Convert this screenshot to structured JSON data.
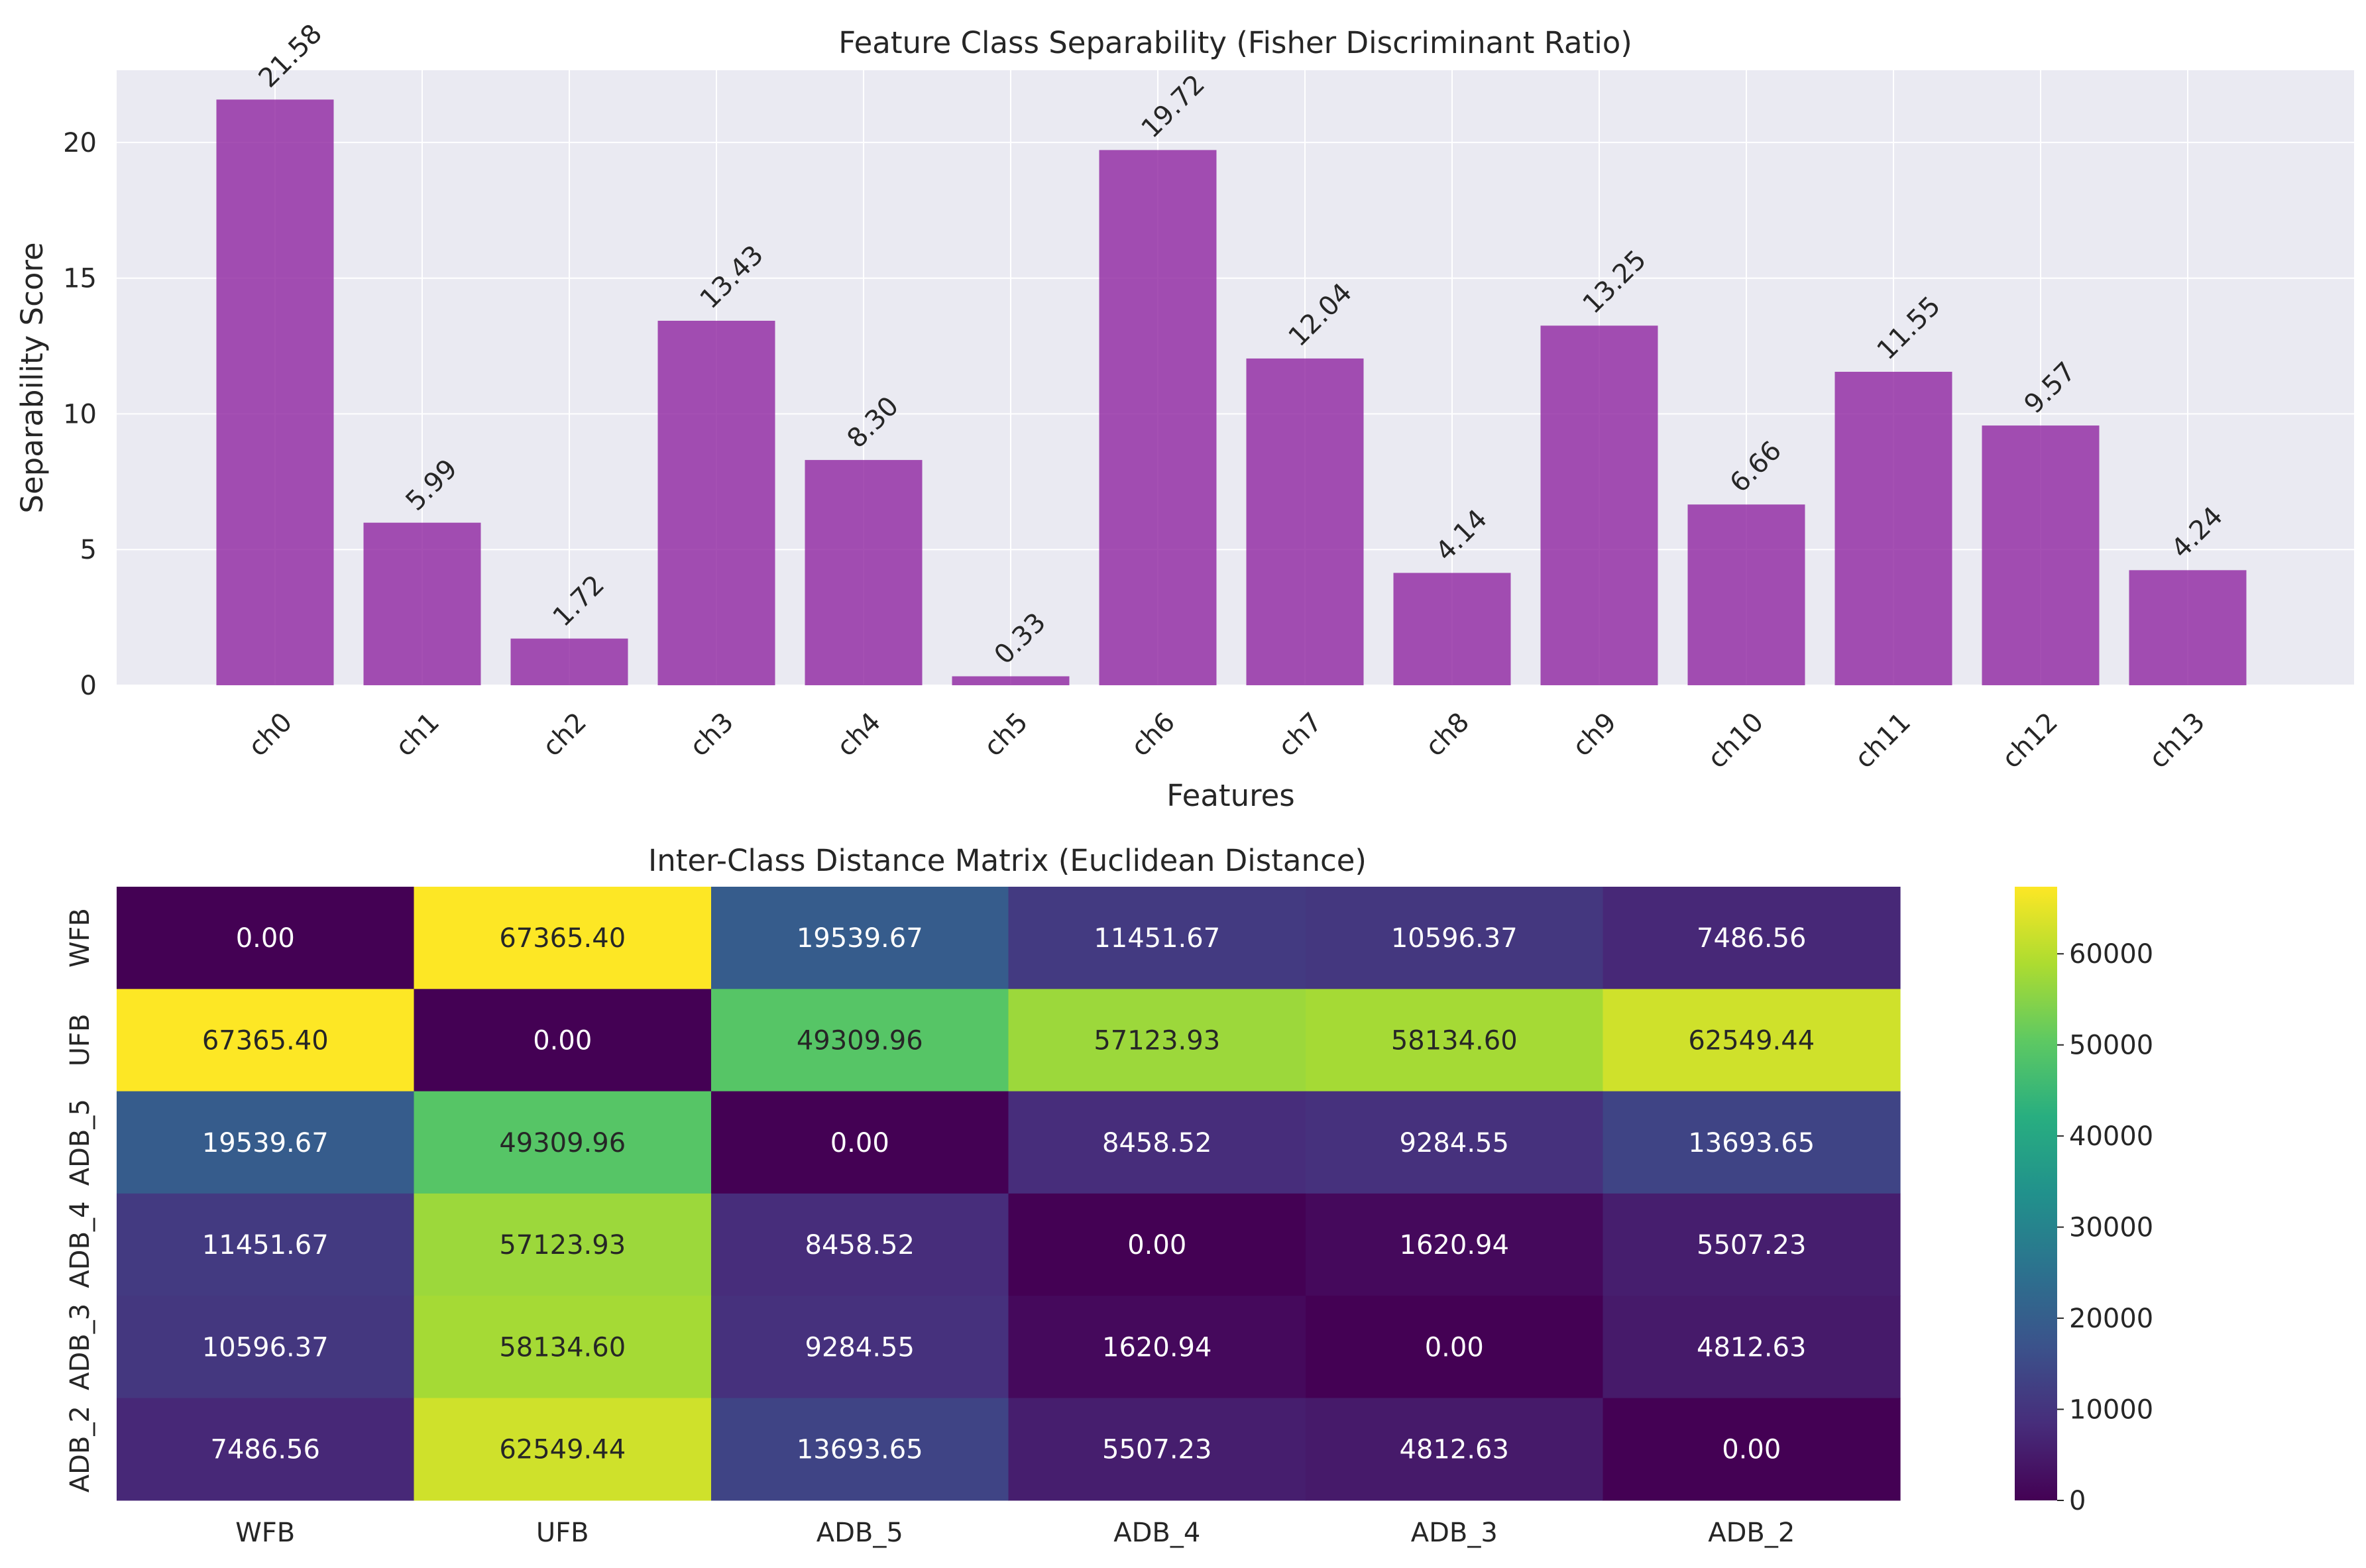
{
  "chart_data": [
    {
      "type": "bar",
      "title": "Feature Class Separability (Fisher Discriminant Ratio)",
      "xlabel": "Features",
      "ylabel": "Separability Score",
      "categories": [
        "ch0",
        "ch1",
        "ch2",
        "ch3",
        "ch4",
        "ch5",
        "ch6",
        "ch7",
        "ch8",
        "ch9",
        "ch10",
        "ch11",
        "ch12",
        "ch13"
      ],
      "values": [
        21.58,
        5.99,
        1.72,
        13.43,
        8.3,
        0.33,
        19.72,
        12.04,
        4.14,
        13.25,
        6.66,
        11.55,
        9.57,
        4.24
      ],
      "value_labels": [
        "21.58",
        "5.99",
        "1.72",
        "13.43",
        "8.30",
        "0.33",
        "19.72",
        "12.04",
        "4.14",
        "13.25",
        "6.66",
        "11.55",
        "9.57",
        "4.24"
      ],
      "yticks": [
        "0",
        "5",
        "10",
        "15",
        "20"
      ],
      "ylim": [
        0,
        22.66
      ],
      "grid": true,
      "bar_color": "#8e24a0",
      "background_color": "#eaeaf2"
    },
    {
      "type": "heatmap",
      "title": "Inter-Class Distance Matrix (Euclidean Distance)",
      "rows": [
        "WFB",
        "UFB",
        "ADB_5",
        "ADB_4",
        "ADB_3",
        "ADB_2"
      ],
      "cols": [
        "WFB",
        "UFB",
        "ADB_5",
        "ADB_4",
        "ADB_3",
        "ADB_2"
      ],
      "values": [
        [
          0.0,
          67365.4,
          19539.67,
          11451.67,
          10596.37,
          7486.56
        ],
        [
          67365.4,
          0.0,
          49309.96,
          57123.93,
          58134.6,
          62549.44
        ],
        [
          19539.67,
          49309.96,
          0.0,
          8458.52,
          9284.55,
          13693.65
        ],
        [
          11451.67,
          57123.93,
          8458.52,
          0.0,
          1620.94,
          5507.23
        ],
        [
          10596.37,
          58134.6,
          9284.55,
          1620.94,
          0.0,
          4812.63
        ],
        [
          7486.56,
          62549.44,
          13693.65,
          5507.23,
          4812.63,
          0.0
        ]
      ],
      "cell_labels": [
        [
          "0.00",
          "67365.40",
          "19539.67",
          "11451.67",
          "10596.37",
          "7486.56"
        ],
        [
          "67365.40",
          "0.00",
          "49309.96",
          "57123.93",
          "58134.60",
          "62549.44"
        ],
        [
          "19539.67",
          "49309.96",
          "0.00",
          "8458.52",
          "9284.55",
          "13693.65"
        ],
        [
          "11451.67",
          "57123.93",
          "8458.52",
          "0.00",
          "1620.94",
          "5507.23"
        ],
        [
          "10596.37",
          "58134.60",
          "9284.55",
          "1620.94",
          "0.00",
          "4812.63"
        ],
        [
          "7486.56",
          "62549.44",
          "13693.65",
          "5507.23",
          "4812.63",
          "0.00"
        ]
      ],
      "colormap": "viridis",
      "vmin": 0,
      "vmax": 67365.4,
      "colorbar_ticks": [
        "0",
        "10000",
        "20000",
        "30000",
        "40000",
        "50000",
        "60000"
      ]
    }
  ]
}
